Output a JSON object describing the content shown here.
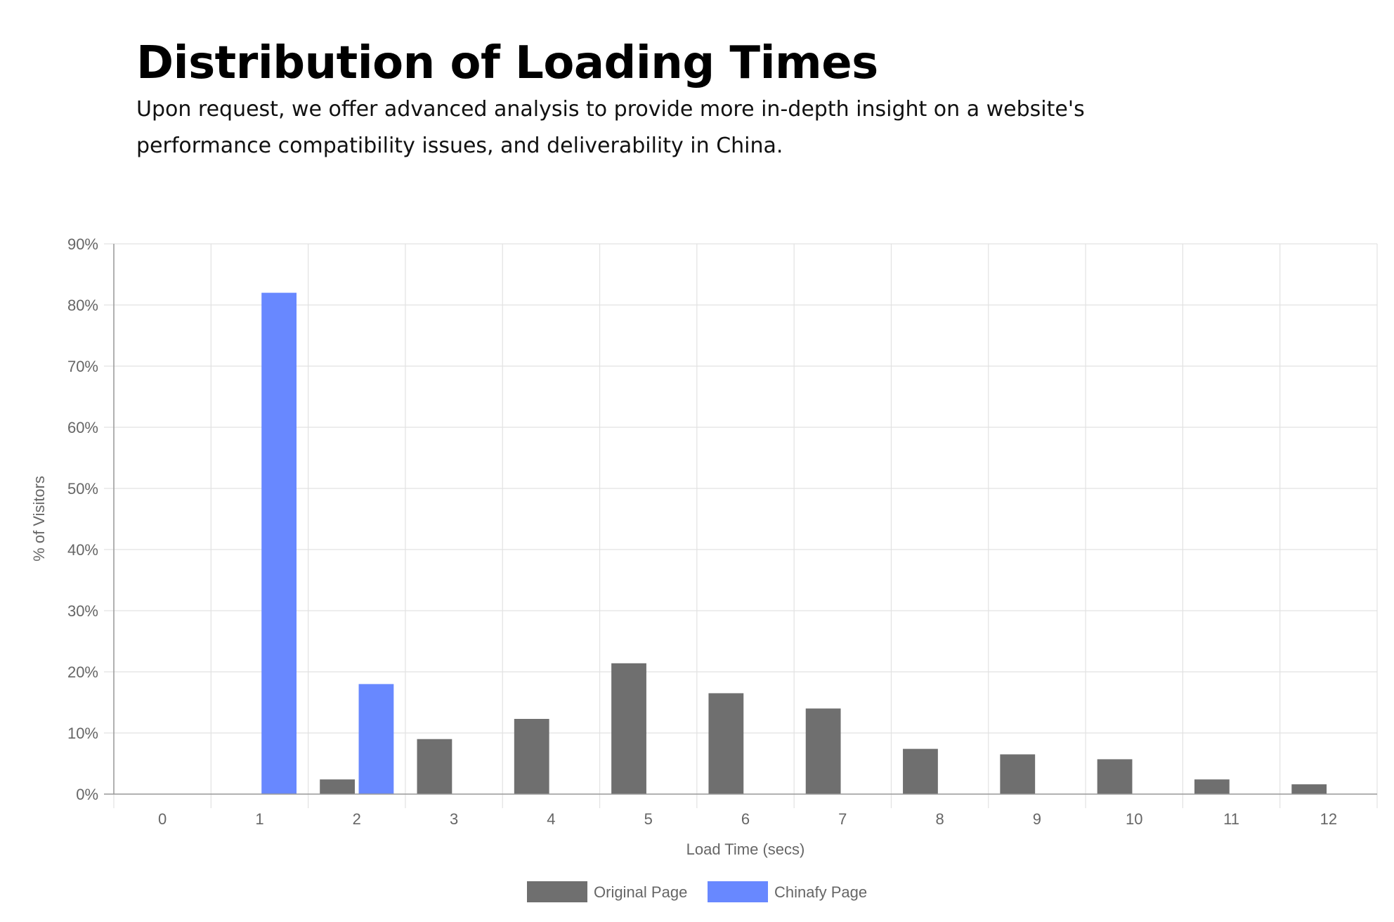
{
  "header": {
    "title": "Distribution of Loading Times",
    "subtitle": "Upon request, we offer advanced analysis to provide more in-depth insight on a website's performance compatibility issues, and deliverability in China."
  },
  "colors": {
    "original": "#6f6f6f",
    "chinafy": "#6888ff",
    "grid": "#e2e2e2",
    "axis": "#999999",
    "text": "#666666"
  },
  "chart_data": {
    "type": "bar",
    "xlabel": "Load Time (secs)",
    "ylabel": "% of Visitors",
    "ylim": [
      0,
      90
    ],
    "yticks": [
      0,
      10,
      20,
      30,
      40,
      50,
      60,
      70,
      80,
      90
    ],
    "ytick_labels": [
      "0%",
      "10%",
      "20%",
      "30%",
      "40%",
      "50%",
      "60%",
      "70%",
      "80%",
      "90%"
    ],
    "categories": [
      "0",
      "1",
      "2",
      "3",
      "4",
      "5",
      "6",
      "7",
      "8",
      "9",
      "10",
      "11",
      "12"
    ],
    "series": [
      {
        "name": "Original Page",
        "values": [
          0,
          0,
          2.4,
          9.0,
          12.3,
          21.4,
          16.5,
          14.0,
          7.4,
          6.5,
          5.7,
          2.4,
          1.6
        ]
      },
      {
        "name": "Chinafy Page",
        "values": [
          0,
          82.0,
          18.0,
          0,
          0,
          0,
          0,
          0,
          0,
          0,
          0,
          0,
          0
        ]
      }
    ],
    "grid": true,
    "legend": "bottom"
  }
}
